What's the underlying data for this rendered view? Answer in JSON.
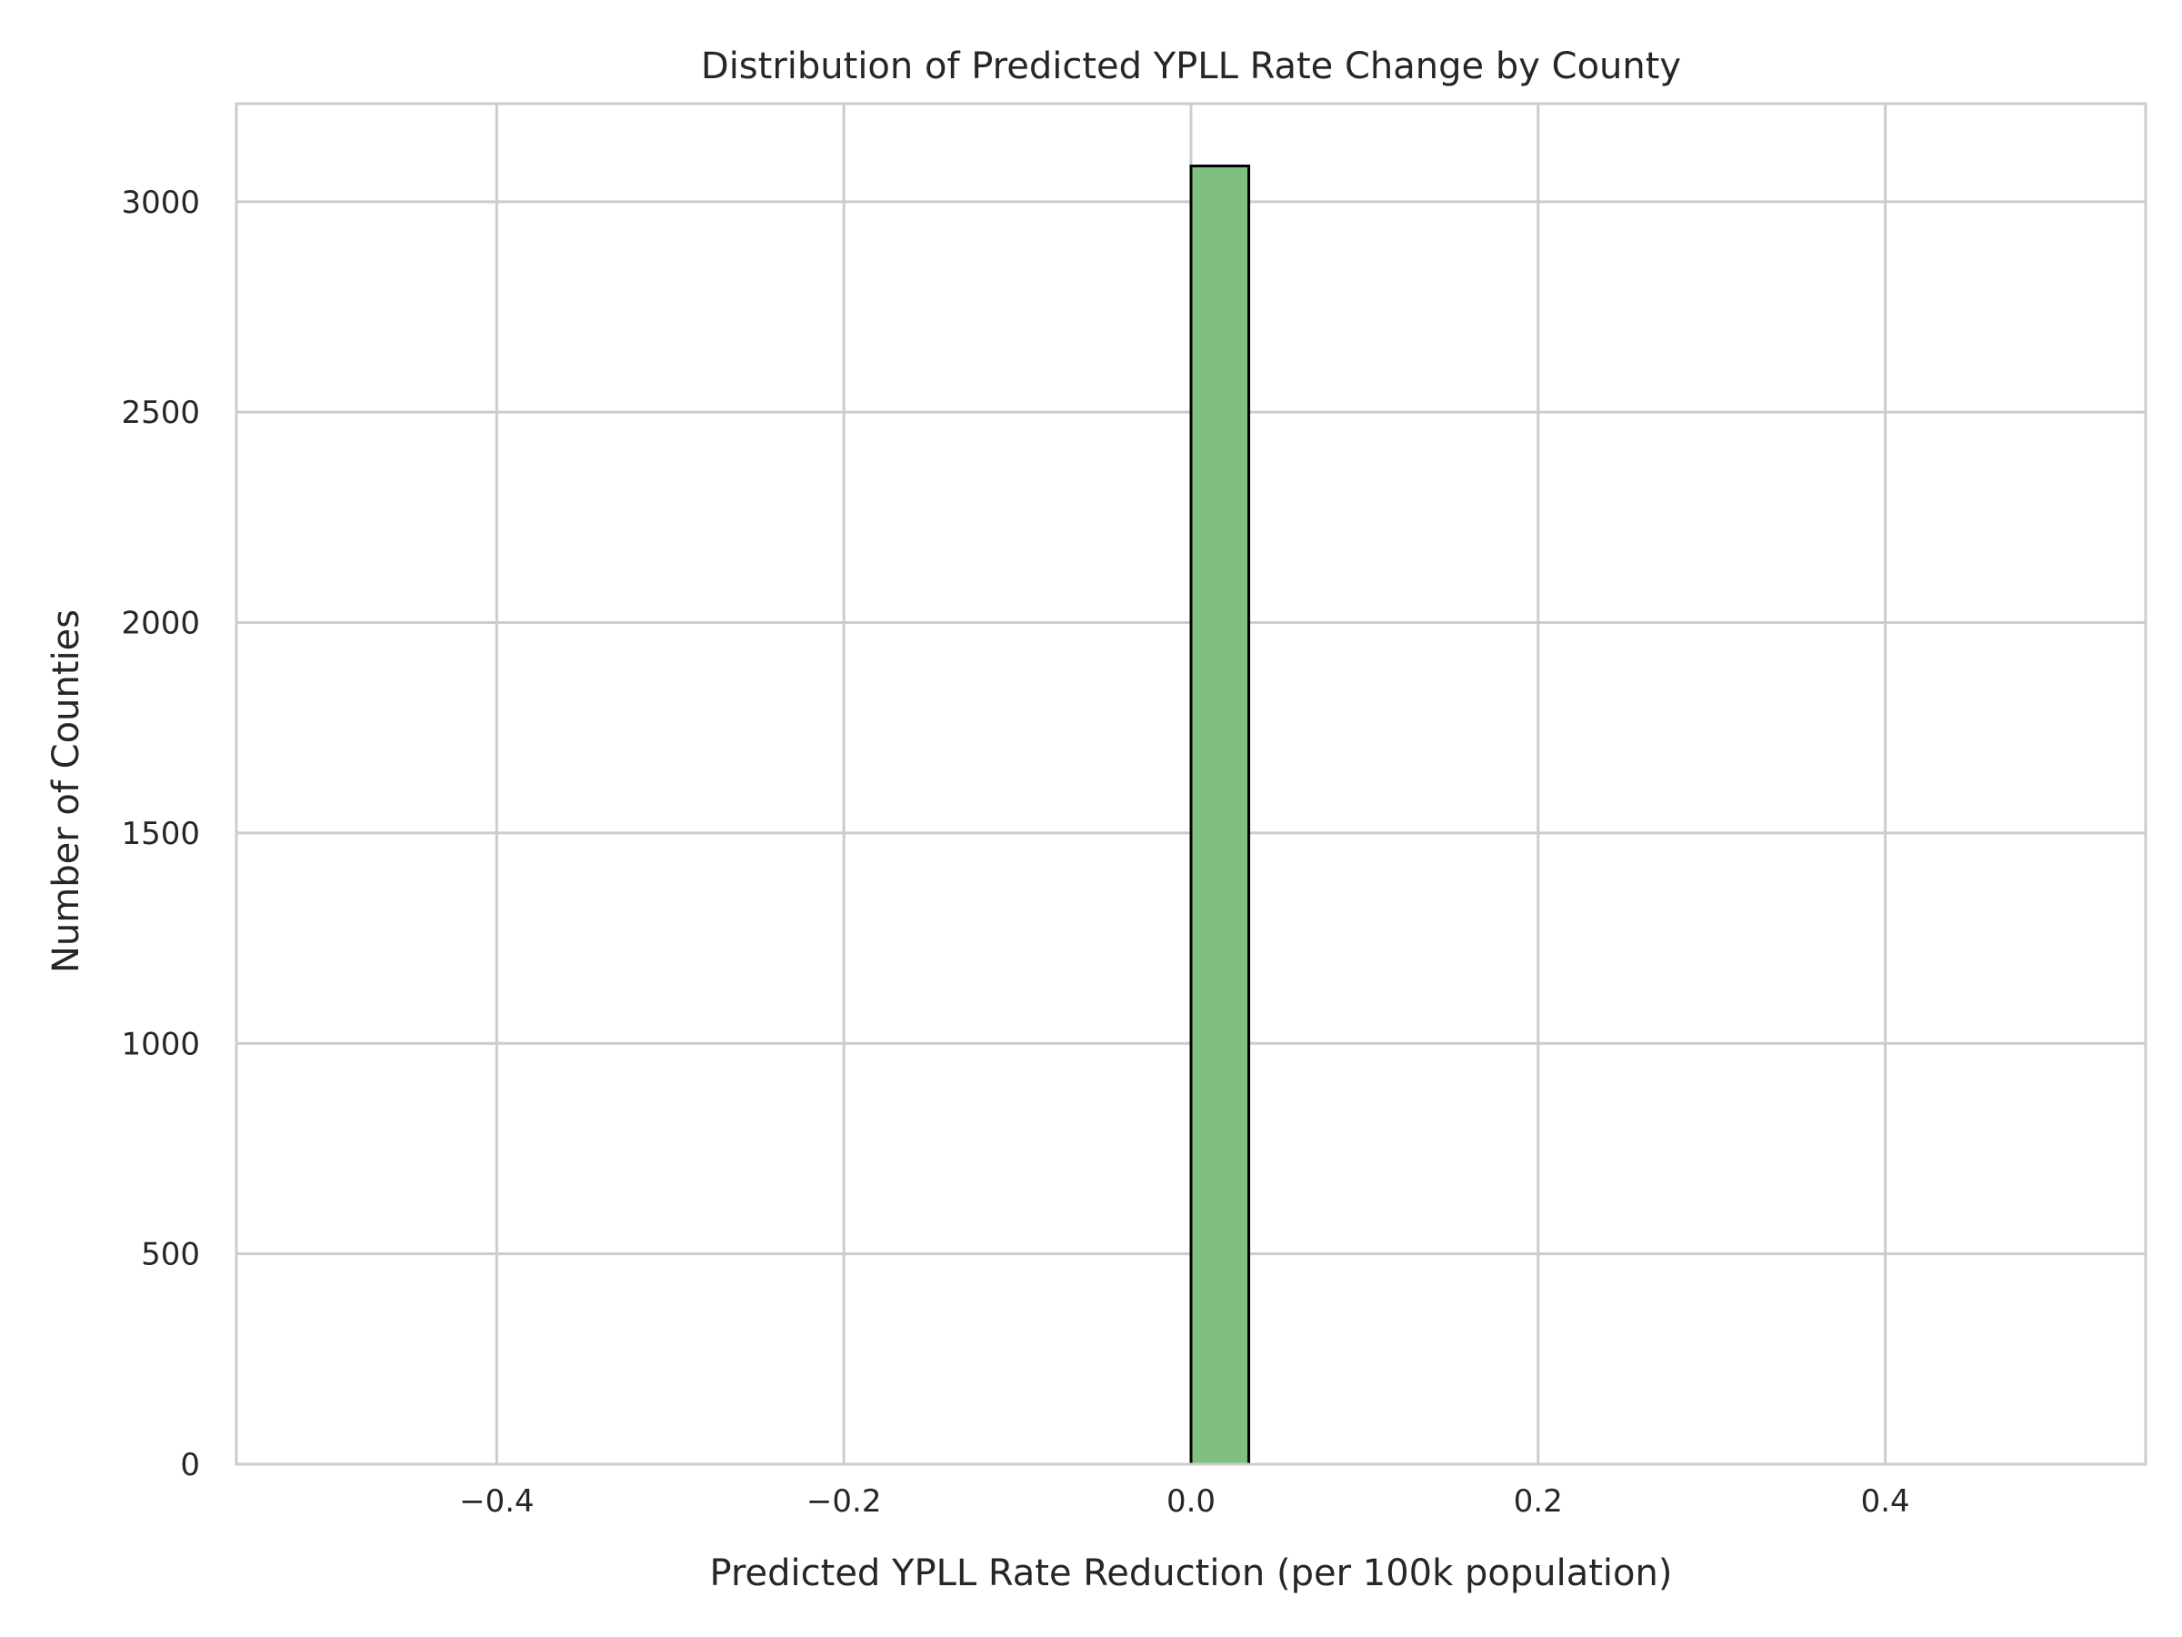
{
  "chart_data": {
    "type": "bar",
    "title": "Distribution of Predicted YPLL Rate Change by County",
    "xlabel": "Predicted YPLL Rate Reduction (per 100k population)",
    "ylabel": "Number of Counties",
    "xlim": [
      -0.55,
      0.55
    ],
    "ylim": [
      0,
      3233
    ],
    "x_ticks": [
      -0.4,
      -0.2,
      0.0,
      0.2,
      0.4
    ],
    "x_tick_labels": [
      "−0.4",
      "−0.2",
      "0.0",
      "0.2",
      "0.4"
    ],
    "y_ticks": [
      0,
      500,
      1000,
      1500,
      2000,
      2500,
      3000
    ],
    "y_tick_labels": [
      "0",
      "500",
      "1000",
      "1500",
      "2000",
      "2500",
      "3000"
    ],
    "bins": [
      {
        "x0": 0.0,
        "x1": 0.0333,
        "count": 3085
      }
    ],
    "grid": true,
    "bar_color": "#7fbf7f",
    "bar_edge_color": "#000000",
    "grid_color": "#cccccc",
    "spine_color": "#cccccc"
  }
}
